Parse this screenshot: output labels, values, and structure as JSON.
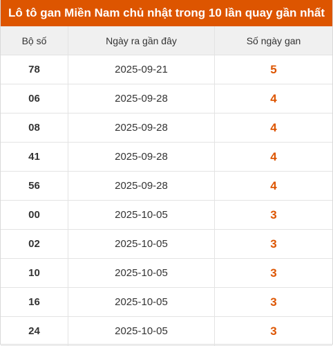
{
  "title": "Lô tô gan Miền Nam chủ nhật trong 10 lần quay gần nhất",
  "columns": [
    "Bộ số",
    "Ngày ra gần đây",
    "Số ngày gan"
  ],
  "rows": [
    {
      "number": "78",
      "date": "2025-09-21",
      "days": "5"
    },
    {
      "number": "06",
      "date": "2025-09-28",
      "days": "4"
    },
    {
      "number": "08",
      "date": "2025-09-28",
      "days": "4"
    },
    {
      "number": "41",
      "date": "2025-09-28",
      "days": "4"
    },
    {
      "number": "56",
      "date": "2025-09-28",
      "days": "4"
    },
    {
      "number": "00",
      "date": "2025-10-05",
      "days": "3"
    },
    {
      "number": "02",
      "date": "2025-10-05",
      "days": "3"
    },
    {
      "number": "10",
      "date": "2025-10-05",
      "days": "3"
    },
    {
      "number": "16",
      "date": "2025-10-05",
      "days": "3"
    },
    {
      "number": "24",
      "date": "2025-10-05",
      "days": "3"
    }
  ],
  "colors": {
    "accent": "#dd5500",
    "header_bg": "#f0f0f0",
    "border": "#e3e3e3"
  }
}
